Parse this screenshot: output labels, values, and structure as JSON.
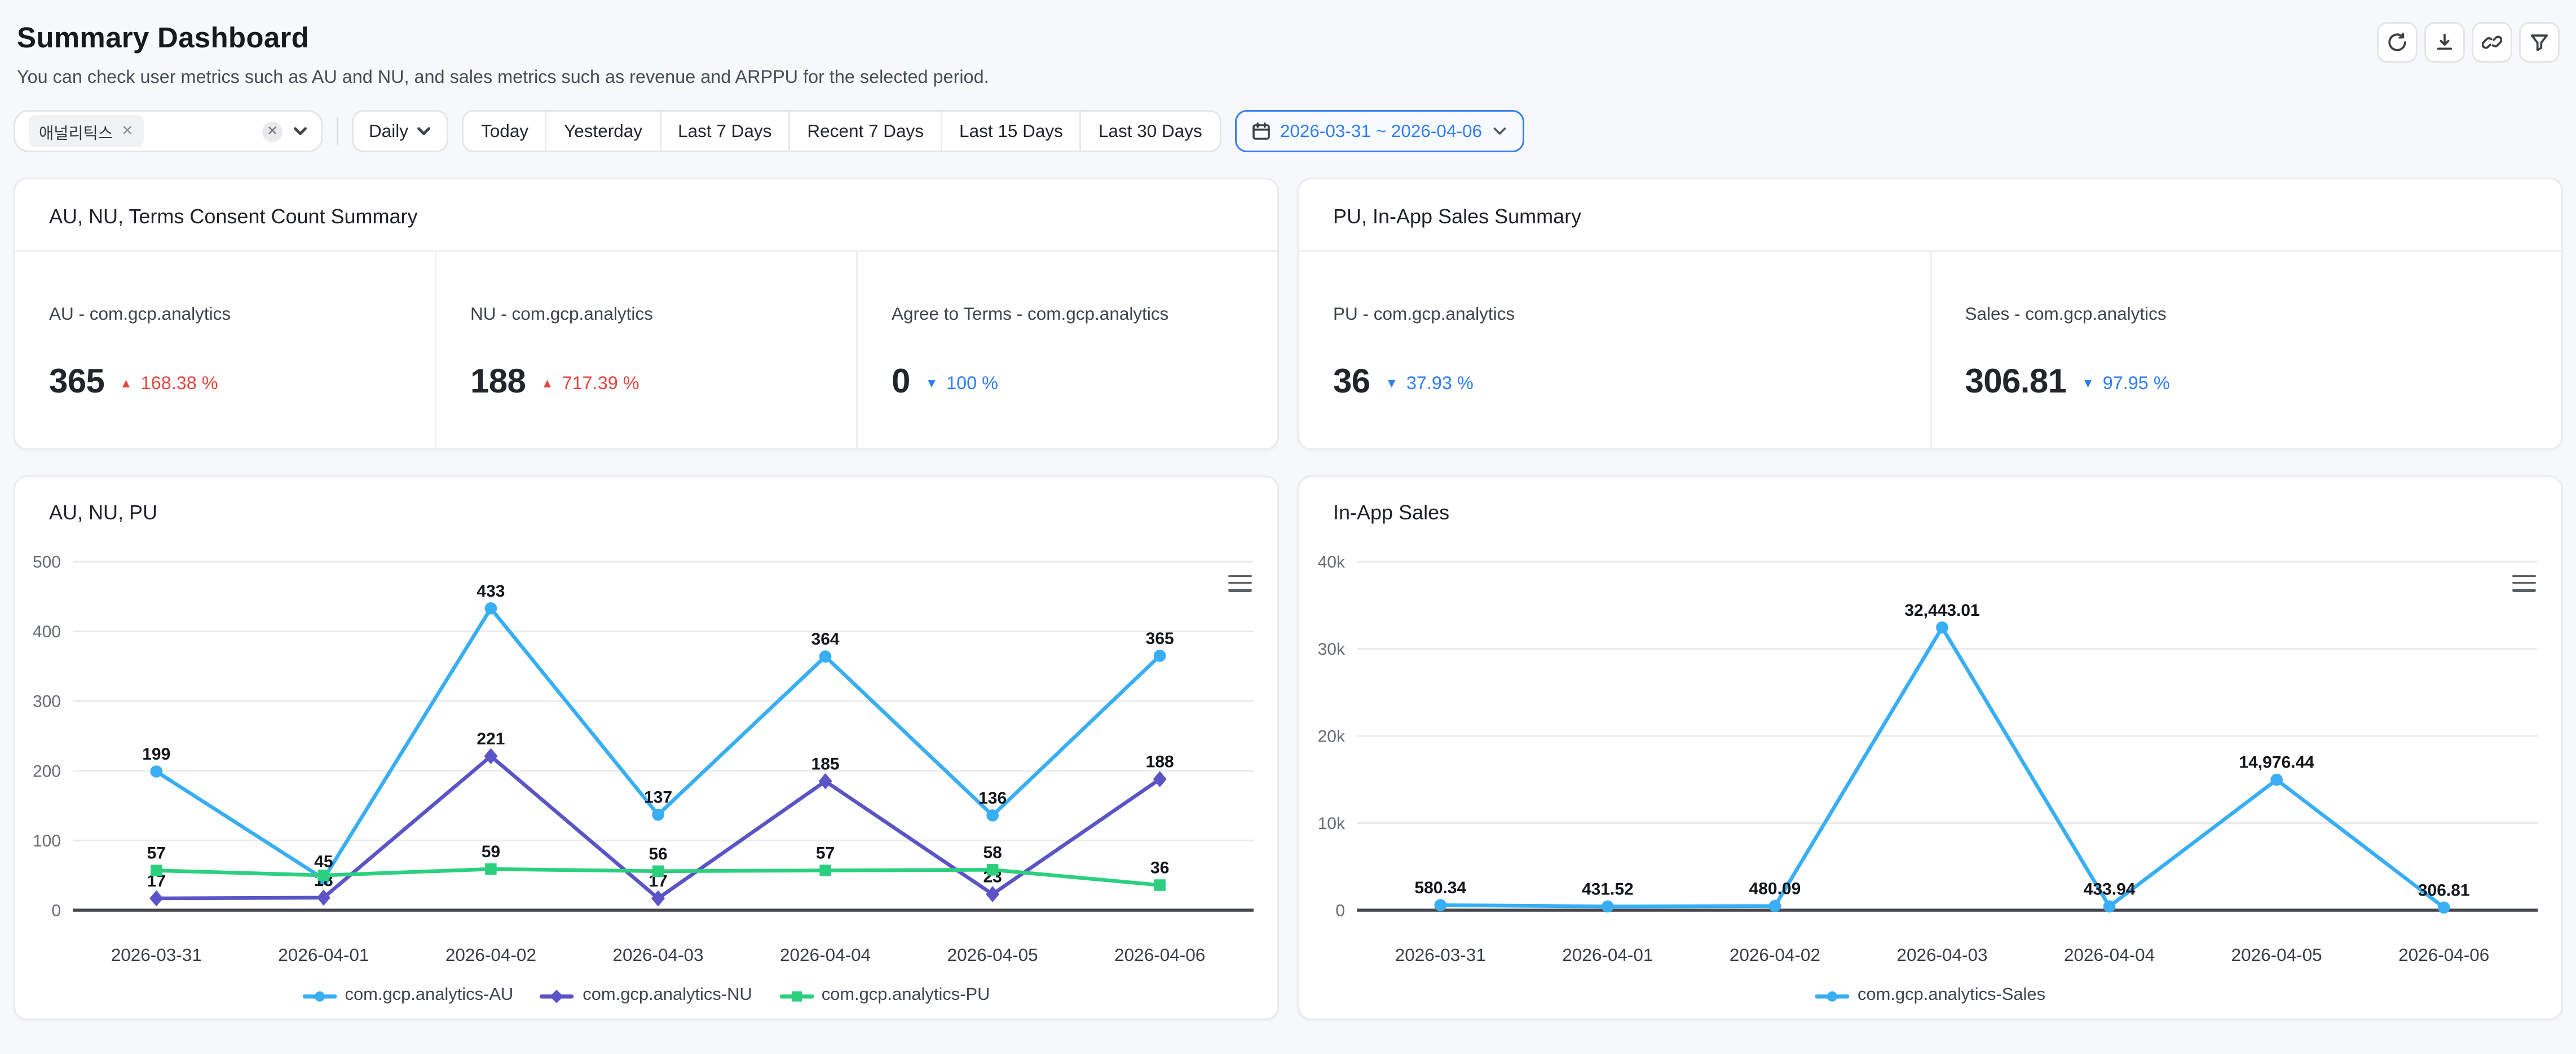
{
  "page": {
    "title": "Summary Dashboard",
    "subtitle": "You can check user metrics such as AU and NU, and sales metrics such as revenue and ARPPU for the selected period.",
    "background": "#f7f8fa"
  },
  "toolbar": {
    "icons": [
      "refresh",
      "download",
      "link",
      "filter"
    ]
  },
  "filters": {
    "app_tag": "애널리틱스",
    "tag_remove": "✕",
    "clear": "✕",
    "period_select": "Daily",
    "range_buttons": [
      "Today",
      "Yesterday",
      "Last 7 Days",
      "Recent 7 Days",
      "Last 15 Days",
      "Last 30 Days"
    ],
    "date_range": "2026-03-31 ~ 2026-04-06"
  },
  "summary_cards": [
    {
      "title": "AU, NU, Terms Consent Count Summary",
      "metrics": [
        {
          "label": "AU - com.gcp.analytics",
          "value": "365",
          "direction": "up",
          "change": "168.38 %"
        },
        {
          "label": "NU - com.gcp.analytics",
          "value": "188",
          "direction": "up",
          "change": "717.39 %"
        },
        {
          "label": "Agree to Terms - com.gcp.analytics",
          "value": "0",
          "direction": "down",
          "change": "100 %"
        }
      ]
    },
    {
      "title": "PU, In-App Sales Summary",
      "metrics": [
        {
          "label": "PU - com.gcp.analytics",
          "value": "36",
          "direction": "down",
          "change": "37.93 %"
        },
        {
          "label": "Sales - com.gcp.analytics",
          "value": "306.81",
          "direction": "down",
          "change": "97.95 %"
        }
      ]
    }
  ],
  "colors": {
    "up": "#e5463d",
    "down": "#2b7cf7",
    "accent_blue": "#2f7df6",
    "series_au": "#38aef5",
    "series_nu": "#5b54c6",
    "series_pu": "#2bd07f",
    "series_sales": "#38aef5"
  },
  "chart_data": [
    {
      "type": "line",
      "title": "AU, NU, PU",
      "categories": [
        "2026-03-31",
        "2026-04-01",
        "2026-04-02",
        "2026-04-03",
        "2026-04-04",
        "2026-04-05",
        "2026-04-06"
      ],
      "series": [
        {
          "name": "com.gcp.analytics-AU",
          "color": "#38aef5",
          "symbol": "circle",
          "values": [
            199,
            45,
            433,
            137,
            364,
            136,
            365
          ],
          "labels": [
            "199",
            "45",
            "433",
            "137",
            "364",
            "136",
            "365"
          ]
        },
        {
          "name": "com.gcp.analytics-NU",
          "color": "#5b54c6",
          "symbol": "diamond",
          "values": [
            17,
            18,
            221,
            17,
            185,
            23,
            188
          ],
          "labels": [
            "17",
            "18",
            "221",
            "17",
            "185",
            "23",
            "188"
          ]
        },
        {
          "name": "com.gcp.analytics-PU",
          "color": "#2bd07f",
          "symbol": "square",
          "values": [
            57,
            50,
            59,
            56,
            57,
            58,
            36
          ],
          "labels": [
            "57",
            null,
            "59",
            "56",
            "57",
            "58",
            "36"
          ]
        }
      ],
      "xlabel": "",
      "ylabel": "",
      "ylim": [
        0,
        500
      ],
      "yticks": [
        {
          "v": 0,
          "label": "0"
        },
        {
          "v": 100,
          "label": "100"
        },
        {
          "v": 200,
          "label": "200"
        },
        {
          "v": 300,
          "label": "300"
        },
        {
          "v": 400,
          "label": "400"
        },
        {
          "v": 500,
          "label": "500"
        }
      ],
      "grid": true,
      "legend_position": "bottom"
    },
    {
      "type": "line",
      "title": "In-App Sales",
      "categories": [
        "2026-03-31",
        "2026-04-01",
        "2026-04-02",
        "2026-04-03",
        "2026-04-04",
        "2026-04-05",
        "2026-04-06"
      ],
      "series": [
        {
          "name": "com.gcp.analytics-Sales",
          "color": "#38aef5",
          "symbol": "circle",
          "values": [
            580.34,
            431.52,
            480.09,
            32443.01,
            433.94,
            14976.44,
            306.81
          ],
          "labels": [
            "580.34",
            "431.52",
            "480.09",
            "32,443.01",
            "433.94",
            "14,976.44",
            "306.81"
          ]
        }
      ],
      "xlabel": "",
      "ylabel": "",
      "ylim": [
        0,
        40000
      ],
      "yticks": [
        {
          "v": 0,
          "label": "0"
        },
        {
          "v": 10000,
          "label": "10k"
        },
        {
          "v": 20000,
          "label": "20k"
        },
        {
          "v": 30000,
          "label": "30k"
        },
        {
          "v": 40000,
          "label": "40k"
        }
      ],
      "grid": true,
      "legend_position": "bottom"
    }
  ]
}
